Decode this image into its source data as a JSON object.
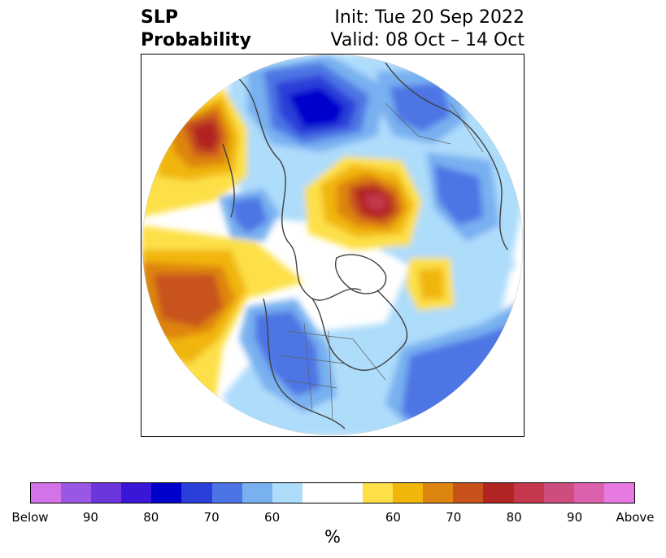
{
  "title": {
    "left_line1": "SLP",
    "left_line2": "Probability",
    "right_line1": "Init: Tue 20 Sep 2022",
    "right_line2": "Valid: 08 Oct – 14 Oct"
  },
  "map": {
    "projection": "north-polar-stereographic",
    "variable": "sea level pressure probability"
  },
  "colorbar": {
    "colors": [
      "#d472e8",
      "#9a57e4",
      "#6c36dd",
      "#3a17d6",
      "#0000cc",
      "#2a3fd8",
      "#4d74e4",
      "#78b0f0",
      "#aedcfb",
      "#ffffff",
      "#ffffff",
      "#fde047",
      "#f1b60b",
      "#de8510",
      "#c8521c",
      "#b22424",
      "#c4374d",
      "#cc4d7e",
      "#dd60ac",
      "#e679e2"
    ],
    "labels": [
      "Below",
      "90",
      "80",
      "70",
      "60",
      "60",
      "70",
      "80",
      "90",
      "Above"
    ],
    "unit": "%"
  }
}
